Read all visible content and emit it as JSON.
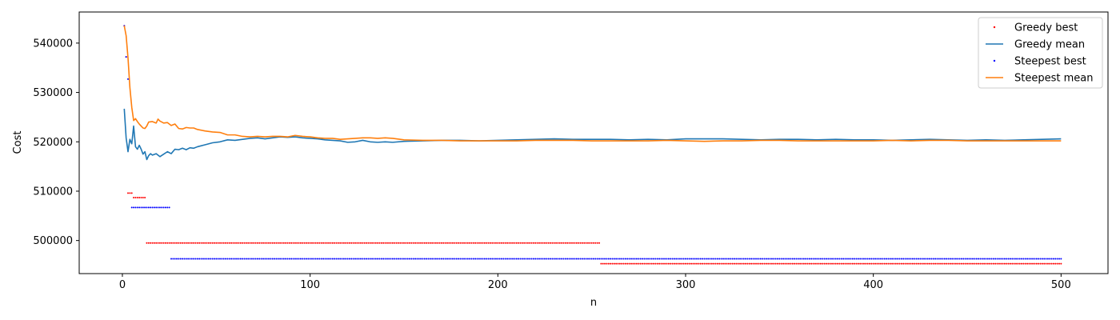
{
  "chart_data": {
    "type": "line",
    "xlabel": "n",
    "ylabel": "Cost",
    "xlim": [
      -23,
      525
    ],
    "ylim": [
      493300,
      546300
    ],
    "xticks": [
      0,
      100,
      200,
      300,
      400,
      500
    ],
    "yticks": [
      500000,
      510000,
      520000,
      530000,
      540000
    ],
    "grid": false,
    "legend_position": "top-right",
    "series": [
      {
        "name": "Greedy best",
        "kind": "points",
        "color": "#ff0000",
        "segments": [
          {
            "x_start": 1,
            "x_end": 1,
            "y": 543500
          },
          {
            "x_start": 2,
            "x_end": 2,
            "y": 537200
          },
          {
            "x_start": 3,
            "x_end": 5,
            "y": 509600
          },
          {
            "x_start": 6,
            "x_end": 12,
            "y": 508700
          },
          {
            "x_start": 13,
            "x_end": 254,
            "y": 499500
          },
          {
            "x_start": 255,
            "x_end": 500,
            "y": 495300
          }
        ]
      },
      {
        "name": "Greedy mean",
        "kind": "line",
        "color": "#1f77b4",
        "points": [
          [
            1,
            526700
          ],
          [
            2,
            520800
          ],
          [
            3,
            518000
          ],
          [
            4,
            520500
          ],
          [
            5,
            519600
          ],
          [
            6,
            523200
          ],
          [
            7,
            519000
          ],
          [
            8,
            518500
          ],
          [
            9,
            519300
          ],
          [
            10,
            518500
          ],
          [
            11,
            517500
          ],
          [
            12,
            518000
          ],
          [
            13,
            516400
          ],
          [
            14,
            517200
          ],
          [
            15,
            517600
          ],
          [
            16,
            517300
          ],
          [
            18,
            517600
          ],
          [
            20,
            517000
          ],
          [
            22,
            517500
          ],
          [
            24,
            518000
          ],
          [
            26,
            517600
          ],
          [
            28,
            518500
          ],
          [
            30,
            518400
          ],
          [
            32,
            518700
          ],
          [
            34,
            518400
          ],
          [
            36,
            518800
          ],
          [
            38,
            518700
          ],
          [
            40,
            519000
          ],
          [
            44,
            519400
          ],
          [
            48,
            519800
          ],
          [
            52,
            520000
          ],
          [
            56,
            520400
          ],
          [
            60,
            520300
          ],
          [
            64,
            520500
          ],
          [
            68,
            520700
          ],
          [
            72,
            520800
          ],
          [
            76,
            520600
          ],
          [
            80,
            520800
          ],
          [
            84,
            521000
          ],
          [
            88,
            520900
          ],
          [
            92,
            521000
          ],
          [
            96,
            520800
          ],
          [
            100,
            520700
          ],
          [
            104,
            520600
          ],
          [
            108,
            520400
          ],
          [
            112,
            520300
          ],
          [
            116,
            520200
          ],
          [
            120,
            519900
          ],
          [
            124,
            520000
          ],
          [
            128,
            520300
          ],
          [
            132,
            520000
          ],
          [
            136,
            519900
          ],
          [
            140,
            520000
          ],
          [
            144,
            519900
          ],
          [
            150,
            520100
          ],
          [
            160,
            520200
          ],
          [
            170,
            520300
          ],
          [
            180,
            520300
          ],
          [
            190,
            520200
          ],
          [
            200,
            520300
          ],
          [
            210,
            520400
          ],
          [
            220,
            520500
          ],
          [
            230,
            520600
          ],
          [
            240,
            520500
          ],
          [
            250,
            520500
          ],
          [
            260,
            520500
          ],
          [
            270,
            520400
          ],
          [
            280,
            520500
          ],
          [
            290,
            520400
          ],
          [
            300,
            520600
          ],
          [
            310,
            520600
          ],
          [
            320,
            520600
          ],
          [
            330,
            520500
          ],
          [
            340,
            520400
          ],
          [
            350,
            520500
          ],
          [
            360,
            520500
          ],
          [
            370,
            520400
          ],
          [
            380,
            520500
          ],
          [
            390,
            520400
          ],
          [
            400,
            520400
          ],
          [
            410,
            520300
          ],
          [
            420,
            520400
          ],
          [
            430,
            520500
          ],
          [
            440,
            520400
          ],
          [
            450,
            520300
          ],
          [
            460,
            520400
          ],
          [
            470,
            520300
          ],
          [
            480,
            520400
          ],
          [
            490,
            520500
          ],
          [
            500,
            520600
          ]
        ]
      },
      {
        "name": "Steepest best",
        "kind": "points",
        "color": "#0000ff",
        "segments": [
          {
            "x_start": 1,
            "x_end": 1,
            "y": 543500
          },
          {
            "x_start": 2,
            "x_end": 2,
            "y": 537200
          },
          {
            "x_start": 3,
            "x_end": 3,
            "y": 532700
          },
          {
            "x_start": 5,
            "x_end": 25,
            "y": 506700
          },
          {
            "x_start": 26,
            "x_end": 500,
            "y": 496300
          }
        ]
      },
      {
        "name": "Steepest mean",
        "kind": "line",
        "color": "#ff7f0e",
        "points": [
          [
            1,
            543500
          ],
          [
            2,
            541500
          ],
          [
            3,
            537000
          ],
          [
            4,
            531000
          ],
          [
            5,
            527000
          ],
          [
            6,
            524300
          ],
          [
            7,
            524700
          ],
          [
            8,
            524100
          ],
          [
            9,
            523600
          ],
          [
            10,
            523200
          ],
          [
            11,
            522800
          ],
          [
            12,
            522700
          ],
          [
            13,
            523200
          ],
          [
            14,
            524000
          ],
          [
            16,
            524100
          ],
          [
            18,
            523800
          ],
          [
            19,
            524600
          ],
          [
            20,
            524200
          ],
          [
            22,
            523800
          ],
          [
            24,
            523900
          ],
          [
            26,
            523300
          ],
          [
            28,
            523600
          ],
          [
            30,
            522700
          ],
          [
            32,
            522600
          ],
          [
            34,
            522900
          ],
          [
            36,
            522800
          ],
          [
            38,
            522800
          ],
          [
            40,
            522500
          ],
          [
            44,
            522200
          ],
          [
            48,
            522000
          ],
          [
            52,
            521900
          ],
          [
            56,
            521400
          ],
          [
            60,
            521400
          ],
          [
            64,
            521100
          ],
          [
            68,
            521000
          ],
          [
            72,
            521100
          ],
          [
            76,
            521000
          ],
          [
            80,
            521100
          ],
          [
            84,
            521100
          ],
          [
            88,
            521000
          ],
          [
            92,
            521300
          ],
          [
            96,
            521100
          ],
          [
            100,
            521000
          ],
          [
            104,
            520800
          ],
          [
            108,
            520700
          ],
          [
            112,
            520700
          ],
          [
            116,
            520500
          ],
          [
            120,
            520600
          ],
          [
            124,
            520700
          ],
          [
            128,
            520800
          ],
          [
            132,
            520800
          ],
          [
            136,
            520700
          ],
          [
            140,
            520800
          ],
          [
            144,
            520700
          ],
          [
            150,
            520400
          ],
          [
            160,
            520300
          ],
          [
            170,
            520300
          ],
          [
            180,
            520200
          ],
          [
            190,
            520200
          ],
          [
            200,
            520200
          ],
          [
            210,
            520200
          ],
          [
            220,
            520300
          ],
          [
            230,
            520300
          ],
          [
            240,
            520300
          ],
          [
            250,
            520200
          ],
          [
            260,
            520200
          ],
          [
            270,
            520200
          ],
          [
            280,
            520200
          ],
          [
            290,
            520300
          ],
          [
            300,
            520200
          ],
          [
            310,
            520100
          ],
          [
            320,
            520200
          ],
          [
            330,
            520200
          ],
          [
            340,
            520300
          ],
          [
            350,
            520300
          ],
          [
            360,
            520200
          ],
          [
            370,
            520200
          ],
          [
            380,
            520200
          ],
          [
            390,
            520200
          ],
          [
            400,
            520200
          ],
          [
            410,
            520300
          ],
          [
            420,
            520200
          ],
          [
            430,
            520300
          ],
          [
            440,
            520300
          ],
          [
            450,
            520200
          ],
          [
            460,
            520200
          ],
          [
            470,
            520200
          ],
          [
            480,
            520200
          ],
          [
            490,
            520200
          ],
          [
            500,
            520200
          ]
        ]
      }
    ]
  }
}
